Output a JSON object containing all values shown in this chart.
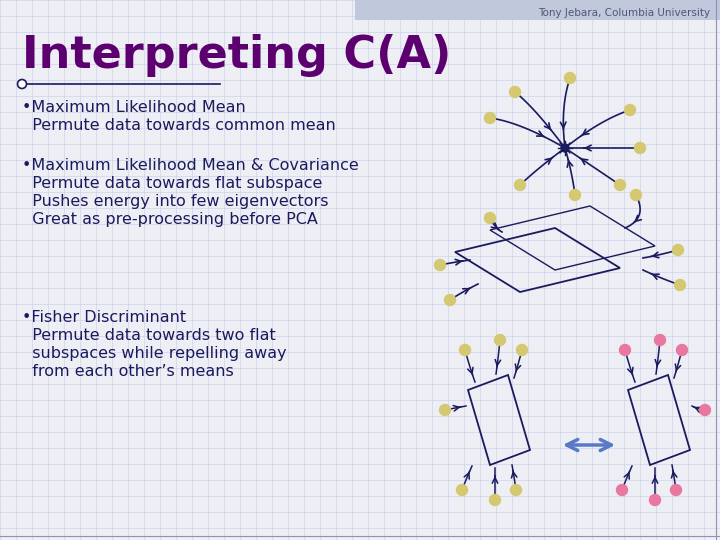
{
  "bg_color": "#eeeef5",
  "grid_color": "#c8cce8",
  "header_bg": "#c0c8dc",
  "title": "Interpreting C(A)",
  "title_color": "#5b006e",
  "header_text": "Tony Jebara, Columbia University",
  "header_text_color": "#555577",
  "bullet_color": "#1a1a5e",
  "bullet_font_size": 11.5,
  "title_font_size": 32,
  "line_color": "#1a1a5e",
  "dot_color_yellow": "#d4c870",
  "dot_color_pink": "#e878a0",
  "arrow_color": "#5878c8",
  "bullet1_title": "•Maximum Likelihood Mean",
  "bullet1_body": "  Permute data towards common mean",
  "bullet2_title": "•Maximum Likelihood Mean & Covariance",
  "bullet2_body1": "  Permute data towards flat subspace",
  "bullet2_body2": "  Pushes energy into few eigenvectors",
  "bullet2_body3": "  Great as pre-processing before PCA",
  "bullet3_title": "•Fisher Discriminant",
  "bullet3_body1": "  Permute data towards two flat",
  "bullet3_body2": "  subspaces while repelling away",
  "bullet3_body3": "  from each other’s means"
}
